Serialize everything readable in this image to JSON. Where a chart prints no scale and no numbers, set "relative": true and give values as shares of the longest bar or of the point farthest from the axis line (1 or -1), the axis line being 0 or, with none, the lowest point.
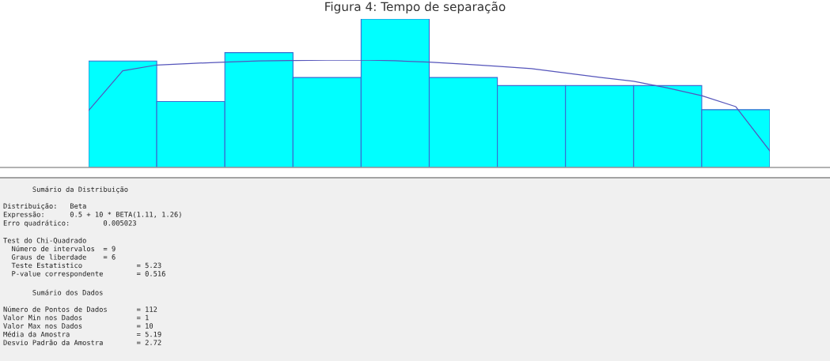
{
  "chart_data": [
    {
      "type": "bar",
      "title": "Figura 4: Tempo de separação",
      "relative": true,
      "categories": [
        null,
        null,
        null,
        null,
        null,
        null,
        null,
        null,
        null,
        null
      ],
      "values": [
        0.717,
        0.444,
        0.773,
        0.606,
        1,
        0.606,
        0.551,
        0.551,
        0.551,
        0.389
      ],
      "color": "#00ffff",
      "annotations": [
        "       Sumário da Distribuição",
        "Distribuição:   Beta\nExpressão:      0.5 + 10 * BETA(1.11, 1.26)\nErro quadrático:        0.005023",
        "Test do Chi-Quadrado\n  Número de intervalos  = 9\n  Graus de liberdade    = 6\n  Teste Estatistico             = 5.23\n  P-value correspondente        = 0.516",
        "       Sumário dos Dados",
        "Número de Pontos de Dados       = 112\nValor Min nos Dados             = 1\nValor Max nos Dados             = 10\nMédia da Amostra                = 5.19\nDesvio Padrão da Amostra        = 2.72"
      ]
    },
    {
      "type": "line",
      "relative": true,
      "color": "#5555bb",
      "categories": [
        null,
        null,
        null,
        null,
        null,
        null,
        null,
        null,
        null,
        null,
        null,
        null,
        null,
        null,
        null,
        null,
        null,
        null,
        null,
        null,
        null
      ],
      "values": [
        0.53,
        0.9,
        0.954,
        0.968,
        0.981,
        0.991,
        0.996,
        0.999,
        1,
        0.993,
        0.981,
        0.962,
        0.943,
        0.92,
        0.88,
        0.839,
        0.803,
        0.74,
        0.668,
        0.566,
        0.154
      ]
    }
  ]
}
